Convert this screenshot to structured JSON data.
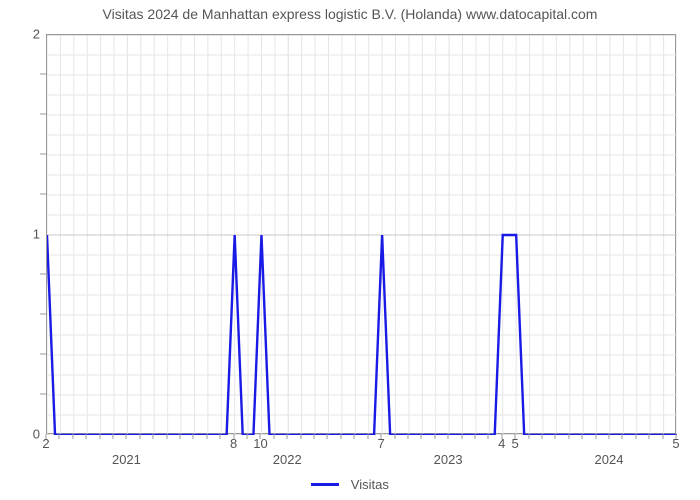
{
  "chart": {
    "type": "line",
    "title": "Visitas 2024 de Manhattan express logistic B.V. (Holanda) www.datocapital.com",
    "title_fontsize": 14,
    "title_color": "#555555",
    "background_color": "#ffffff",
    "plot_border_color": "#999999",
    "grid": {
      "minor_x_color": "#e6e6e6",
      "minor_y_color": "#e6e6e6",
      "major_x_color": "#e6e6e6",
      "major_y_color": "#c8c8c8",
      "minor_x_step": 1,
      "minor_y_step": 0.1
    },
    "x": {
      "domain": [
        0,
        47
      ],
      "major_ticks": [
        {
          "x": 6,
          "label": "2021"
        },
        {
          "x": 18,
          "label": "2022"
        },
        {
          "x": 30,
          "label": "2023"
        },
        {
          "x": 42,
          "label": "2024"
        }
      ],
      "minor_labels": [
        {
          "x": 0,
          "label": "2"
        },
        {
          "x": 14,
          "label": "8"
        },
        {
          "x": 16,
          "label": "10"
        },
        {
          "x": 25,
          "label": "7"
        },
        {
          "x": 34,
          "label": "4"
        },
        {
          "x": 35,
          "label": "5"
        },
        {
          "x": 47,
          "label": "5"
        }
      ],
      "label_fontsize": 13
    },
    "y": {
      "domain": [
        0,
        2
      ],
      "ticks": [
        {
          "y": 0,
          "label": "0"
        },
        {
          "y": 1,
          "label": "1"
        },
        {
          "y": 2,
          "label": "2"
        }
      ],
      "minor_ticks": [
        0.2,
        0.4,
        0.6,
        0.8,
        1.2,
        1.4,
        1.6,
        1.8
      ],
      "label_fontsize": 13
    },
    "series": [
      {
        "name": "Visitas",
        "color": "#1a1ae6",
        "line_width": 2.4,
        "data": [
          [
            0,
            1
          ],
          [
            0.6,
            0
          ],
          [
            13.4,
            0
          ],
          [
            14,
            1
          ],
          [
            14.6,
            0
          ],
          [
            15.4,
            0
          ],
          [
            16,
            1
          ],
          [
            16.6,
            0
          ],
          [
            24.4,
            0
          ],
          [
            25,
            1
          ],
          [
            25.6,
            0
          ],
          [
            33.4,
            0
          ],
          [
            34,
            1
          ],
          [
            35,
            1
          ],
          [
            35.6,
            0
          ],
          [
            47,
            0
          ]
        ]
      }
    ],
    "legend": {
      "label": "Visitas",
      "color": "#1a1ae6",
      "fontsize": 13
    }
  }
}
